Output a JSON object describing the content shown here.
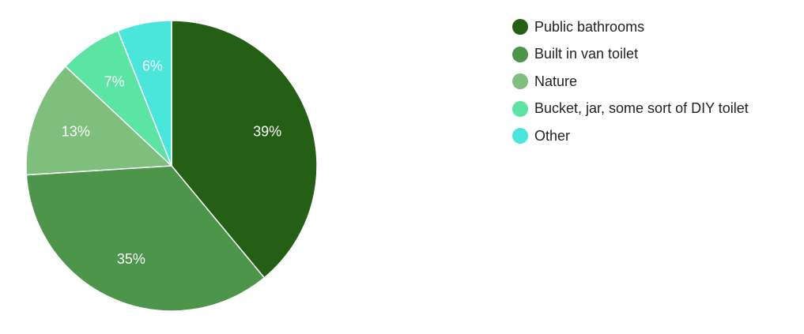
{
  "chart_data": {
    "type": "pie",
    "categories": [
      "Public bathrooms",
      "Built in van toilet",
      "Nature",
      "Bucket, jar, some sort of DIY toilet",
      "Other"
    ],
    "values": [
      39,
      35,
      13,
      7,
      6
    ],
    "labels": [
      "39%",
      "35%",
      "13%",
      "7%",
      "6%"
    ],
    "colors": [
      "#255e15",
      "#4c954a",
      "#7fbf7d",
      "#5be4a4",
      "#4ae6dc"
    ],
    "legend_position": "right",
    "title": ""
  }
}
